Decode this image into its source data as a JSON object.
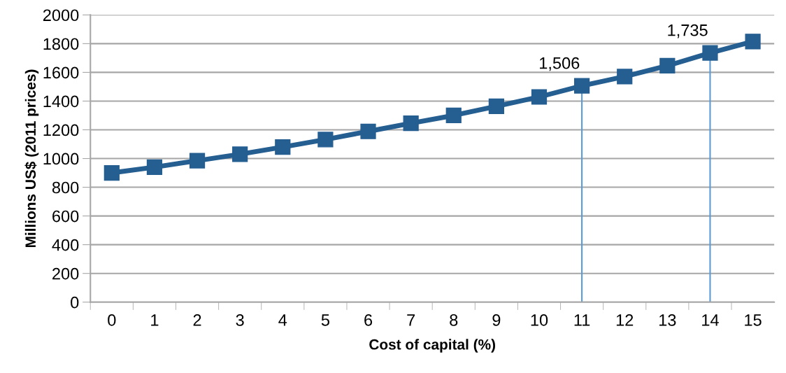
{
  "chart_data": {
    "type": "line",
    "xlabel": "Cost of capital (%)",
    "ylabel": "Millions US$ (2011 prices)",
    "x": [
      0,
      1,
      2,
      3,
      4,
      5,
      6,
      7,
      8,
      9,
      10,
      11,
      12,
      13,
      14,
      15
    ],
    "series": [
      {
        "color": "#255e91",
        "values": [
          900,
          940,
          985,
          1030,
          1080,
          1132,
          1189,
          1246,
          1300,
          1364,
          1429,
          1506,
          1571,
          1646,
          1735,
          1815
        ]
      }
    ],
    "xlim": [
      -0.5,
      15.5
    ],
    "xticks": [
      0,
      1,
      2,
      3,
      4,
      5,
      6,
      7,
      8,
      9,
      10,
      11,
      12,
      13,
      14,
      15
    ],
    "ylim": [
      0,
      2000
    ],
    "yticks": [
      0,
      200,
      400,
      600,
      800,
      1000,
      1200,
      1400,
      1600,
      1800,
      2000
    ],
    "grid": "y",
    "marker": "square",
    "line_style": "solid",
    "ref_lines": [
      {
        "axis": "x",
        "value": 11,
        "color": "#5b9bd5"
      },
      {
        "axis": "x",
        "value": 14,
        "color": "#5b9bd5"
      }
    ],
    "annotations": [
      {
        "text": "1,506",
        "x": 11,
        "y": 1506
      },
      {
        "text": "1,735",
        "x": 14,
        "y": 1735
      }
    ]
  }
}
